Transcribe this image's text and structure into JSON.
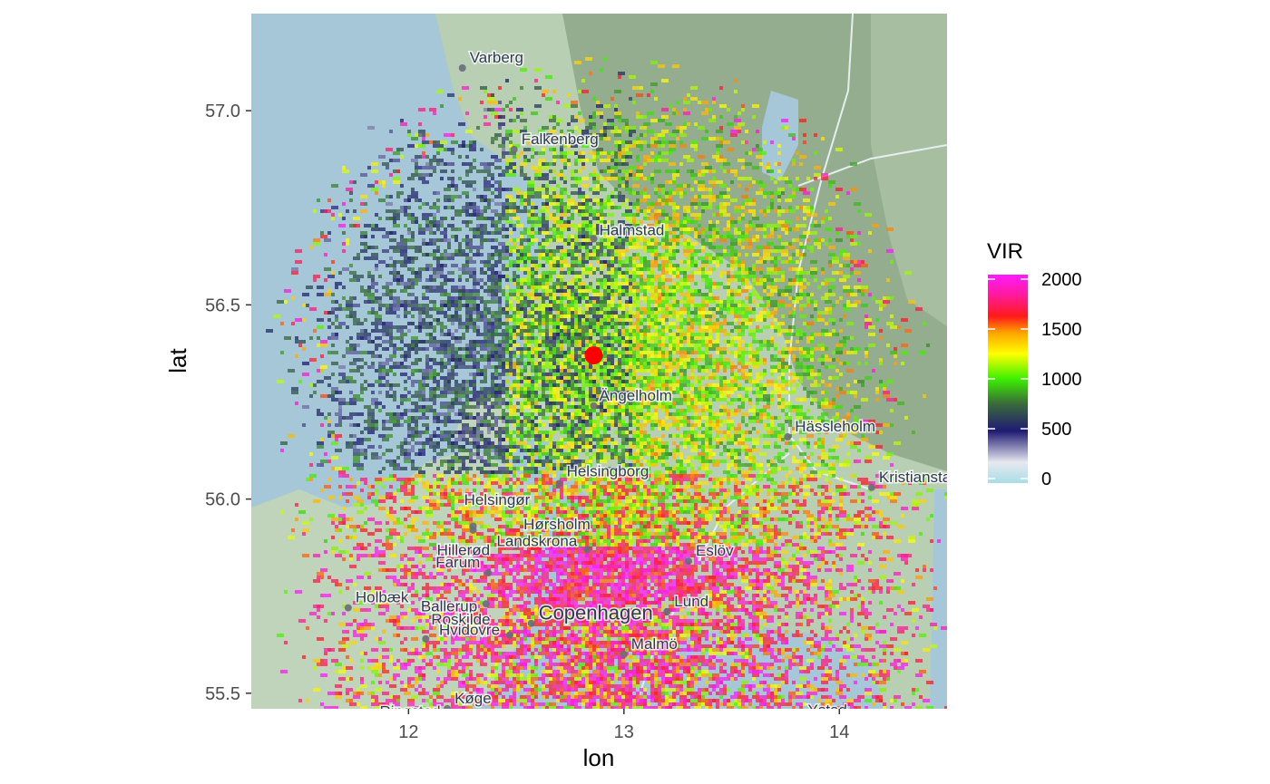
{
  "axes": {
    "xlabel": "lon",
    "ylabel": "lat",
    "xlim": [
      11.27,
      14.5
    ],
    "ylim": [
      55.46,
      57.25
    ],
    "xticks": [
      {
        "value": 12,
        "label": "12"
      },
      {
        "value": 13,
        "label": "13"
      },
      {
        "value": 14,
        "label": "14"
      }
    ],
    "yticks": [
      {
        "value": 55.5,
        "label": "55.5"
      },
      {
        "value": 56.0,
        "label": "56.0"
      },
      {
        "value": 56.5,
        "label": "56.5"
      },
      {
        "value": 57.0,
        "label": "57.0"
      }
    ]
  },
  "legend": {
    "title": "VIR",
    "range": [
      0,
      2000
    ],
    "ticks": [
      {
        "value": 0,
        "label": "0"
      },
      {
        "value": 500,
        "label": "500"
      },
      {
        "value": 1000,
        "label": "1000"
      },
      {
        "value": 1500,
        "label": "1500"
      },
      {
        "value": 2000,
        "label": "2000"
      }
    ],
    "colors": [
      "#a8dde6",
      "#1f1a73",
      "#3cf000",
      "#ffff00",
      "#ff1a1a",
      "#ff1aff"
    ]
  },
  "radar": {
    "lon": 12.86,
    "lat": 56.37,
    "color": "#ff0000"
  },
  "cities": [
    {
      "name": "Varberg",
      "lon": 12.25,
      "lat": 57.11
    },
    {
      "name": "Falkenberg",
      "lon": 12.49,
      "lat": 56.9
    },
    {
      "name": "Halmstad",
      "lon": 12.86,
      "lat": 56.67
    },
    {
      "name": "Ängelholm",
      "lon": 12.86,
      "lat": 56.24
    },
    {
      "name": "Helsingborg",
      "lon": 12.7,
      "lat": 56.04
    },
    {
      "name": "Hässleholm",
      "lon": 13.76,
      "lat": 56.16
    },
    {
      "name": "Kristianstad",
      "lon": 14.15,
      "lat": 56.03
    },
    {
      "name": "Helsingør",
      "lon": 12.3,
      "lat": 55.92
    },
    {
      "name": "Hørsholm",
      "lon": 12.5,
      "lat": 55.88
    },
    {
      "name": "Hillerød",
      "lon": 12.3,
      "lat": 55.93
    },
    {
      "name": "Farum",
      "lon": 12.37,
      "lat": 55.81
    },
    {
      "name": "Landskrona",
      "lon": 12.83,
      "lat": 55.87
    },
    {
      "name": "Eslöv",
      "lon": 13.3,
      "lat": 55.84
    },
    {
      "name": "Holbæk",
      "lon": 11.72,
      "lat": 55.72
    },
    {
      "name": "Ballerup",
      "lon": 12.36,
      "lat": 55.73
    },
    {
      "name": "Copenhagen",
      "lon": 12.57,
      "lat": 55.68
    },
    {
      "name": "Lund",
      "lon": 13.2,
      "lat": 55.71
    },
    {
      "name": "Roskilde",
      "lon": 12.08,
      "lat": 55.64
    },
    {
      "name": "Hvidovre",
      "lon": 12.47,
      "lat": 55.65
    },
    {
      "name": "Malmö",
      "lon": 13.0,
      "lat": 55.6
    },
    {
      "name": "Ringsted",
      "lon": 11.79,
      "lat": 55.44
    },
    {
      "name": "Køge",
      "lon": 12.18,
      "lat": 55.46
    },
    {
      "name": "Ystad",
      "lon": 13.82,
      "lat": 55.43
    }
  ]
}
